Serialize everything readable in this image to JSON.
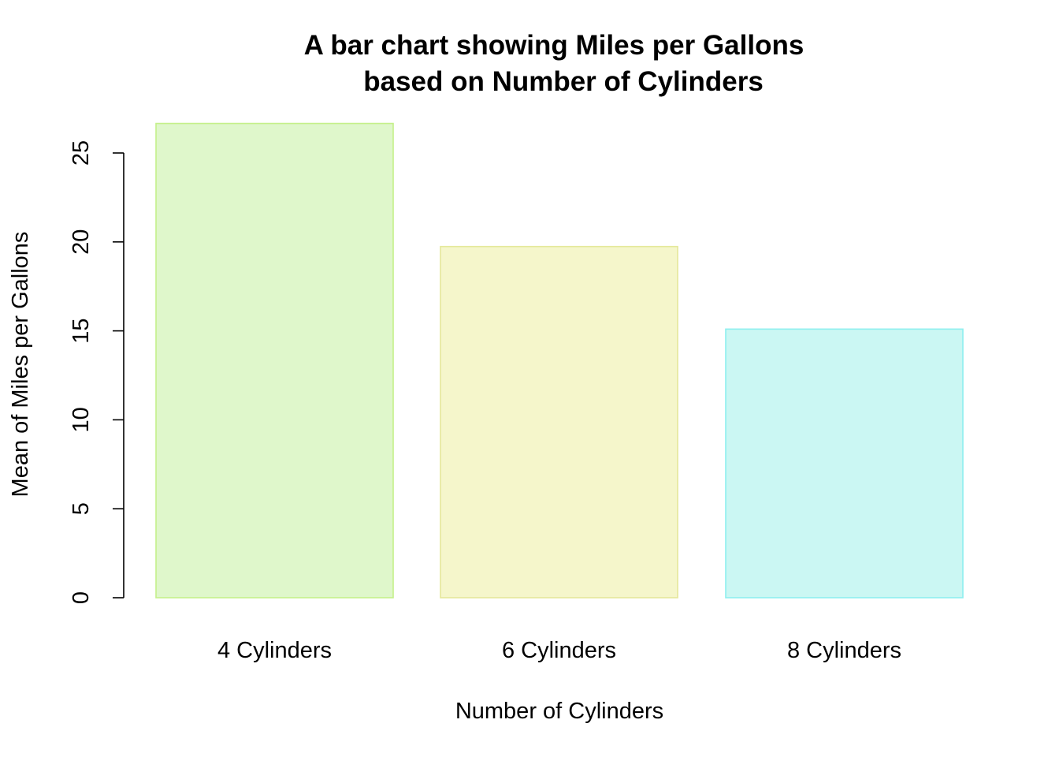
{
  "chart_data": {
    "type": "bar",
    "title": [
      "A bar chart showing Miles per Gallons",
      "based on Number of Cylinders"
    ],
    "xlabel": "Number of Cylinders",
    "ylabel": "Mean of Miles per Gallons",
    "categories": [
      "4 Cylinders",
      "6 Cylinders",
      "8 Cylinders"
    ],
    "values": [
      26.66,
      19.74,
      15.1
    ],
    "ylim": [
      0,
      25
    ],
    "yticks": [
      0,
      5,
      10,
      15,
      20,
      25
    ],
    "grid": false,
    "legend": "none",
    "colors": {
      "fills": [
        "#dff7cb",
        "#f5f6cb",
        "#cbf7f3"
      ],
      "borders": [
        "#c5f08a",
        "#e4e89a",
        "#8eefef"
      ]
    }
  }
}
